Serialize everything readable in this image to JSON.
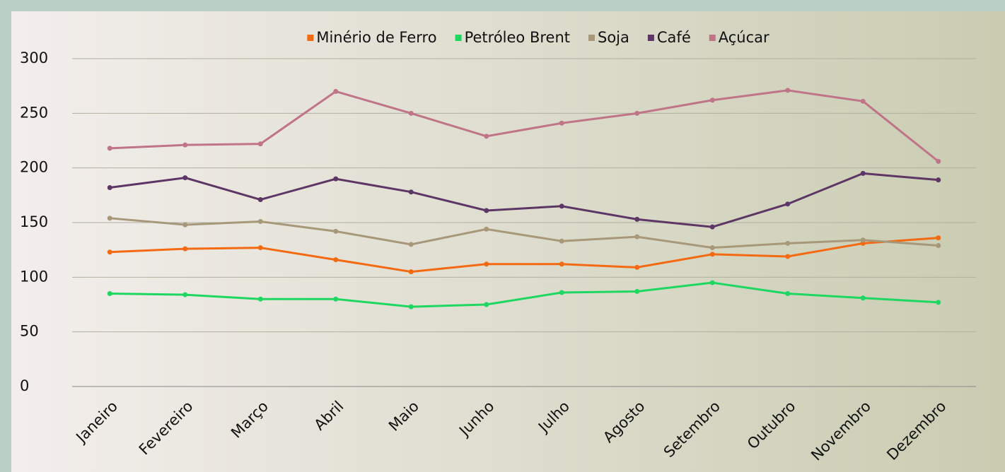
{
  "chart_data": {
    "type": "line",
    "categories": [
      "Janeiro",
      "Fevereiro",
      "Março",
      "Abril",
      "Maio",
      "Junho",
      "Julho",
      "Agosto",
      "Setembro",
      "Outubro",
      "Novembro",
      "Dezembro"
    ],
    "series": [
      {
        "name": "Minério de Ferro",
        "color": "#f46a12",
        "values": [
          123,
          126,
          127,
          116,
          105,
          112,
          112,
          109,
          121,
          119,
          131,
          136
        ]
      },
      {
        "name": "Petróleo Brent",
        "color": "#1ed760",
        "values": [
          85,
          84,
          80,
          80,
          73,
          75,
          86,
          87,
          95,
          85,
          81,
          77
        ]
      },
      {
        "name": "Soja",
        "color": "#a8987a",
        "values": [
          154,
          148,
          151,
          142,
          130,
          144,
          133,
          137,
          127,
          131,
          134,
          129
        ]
      },
      {
        "name": "Café",
        "color": "#5d3665",
        "values": [
          182,
          191,
          171,
          190,
          178,
          161,
          165,
          153,
          146,
          167,
          195,
          189
        ]
      },
      {
        "name": "Açúcar",
        "color": "#c07488",
        "values": [
          218,
          221,
          222,
          270,
          250,
          229,
          241,
          250,
          262,
          271,
          261,
          206
        ]
      }
    ],
    "ylim": [
      0,
      300
    ],
    "yticks": [
      0,
      50,
      100,
      150,
      200,
      250,
      300
    ],
    "grid": true,
    "legend": "top"
  }
}
